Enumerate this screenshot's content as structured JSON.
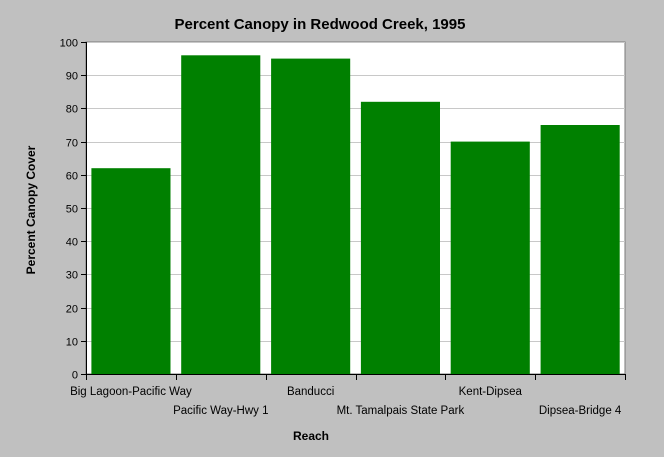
{
  "chart_data": {
    "type": "bar",
    "title": "Percent Canopy in Redwood Creek, 1995",
    "xlabel": "Reach",
    "ylabel": "Percent Canopy Cover",
    "categories": [
      "Big Lagoon-Pacific Way",
      "Pacific Way-Hwy 1",
      "Banducci",
      "Mt. Tamalpais State Park",
      "Kent-Dipsea",
      "Dipsea-Bridge 4"
    ],
    "values": [
      62,
      96,
      95,
      82,
      70,
      75
    ],
    "ylim": [
      0,
      100
    ],
    "yticks": [
      0,
      10,
      20,
      30,
      40,
      50,
      60,
      70,
      80,
      90,
      100
    ],
    "grid": true,
    "legend": "none",
    "colors": {
      "bar": "#008000",
      "plot_background": "#ffffff",
      "page_background": "#c0c0c0",
      "grid": "#c8c8c8"
    }
  }
}
